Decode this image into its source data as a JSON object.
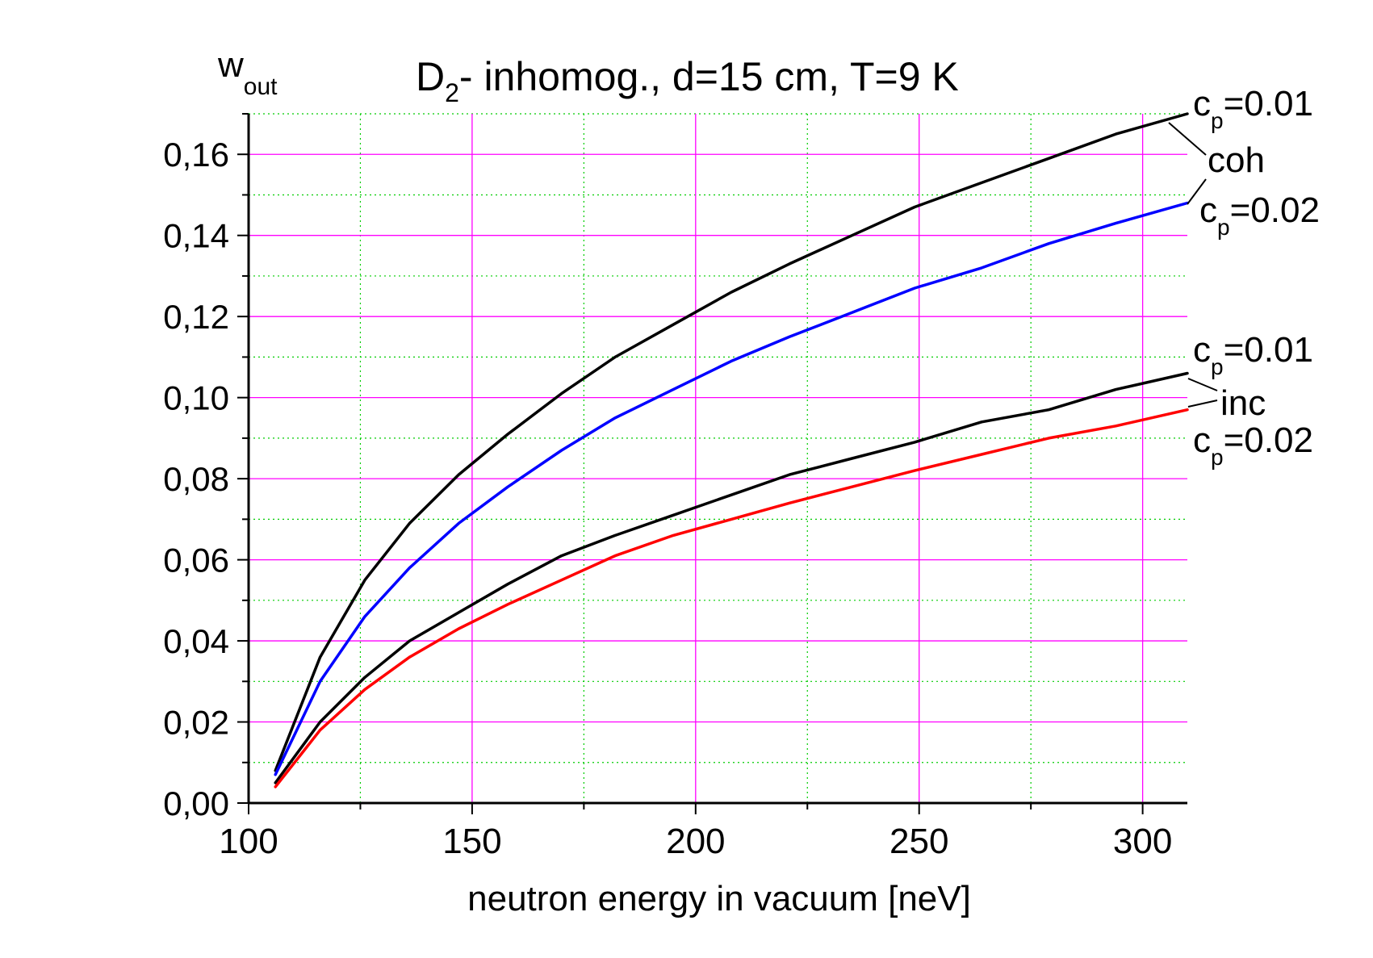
{
  "chart_data": {
    "type": "line",
    "title": {
      "main": "D",
      "sub": "2",
      "rest": "- inhomog., d=15 cm, T=9 K"
    },
    "xlabel": "neutron energy in vacuum [neV]",
    "ylabel": {
      "main": "w",
      "sub": "out"
    },
    "xlim": [
      100,
      310
    ],
    "ylim": [
      0,
      0.17
    ],
    "x_ticks": [
      100,
      150,
      200,
      250,
      300
    ],
    "x_tick_labels": [
      "100",
      "150",
      "200",
      "250",
      "300"
    ],
    "y_ticks": [
      0,
      0.02,
      0.04,
      0.06,
      0.08,
      0.1,
      0.12,
      0.14,
      0.16
    ],
    "y_tick_labels": [
      "0,00",
      "0,02",
      "0,04",
      "0,06",
      "0,08",
      "0,10",
      "0,12",
      "0,14",
      "0,16"
    ],
    "grid": true,
    "x": [
      106,
      116,
      126,
      136,
      147,
      158,
      170,
      182,
      195,
      208,
      221,
      235,
      249,
      264,
      279,
      294,
      310
    ],
    "series": [
      {
        "name": "coh c_p=0.01",
        "color": "#000000",
        "values": [
          0.008,
          0.036,
          0.055,
          0.069,
          0.081,
          0.091,
          0.101,
          0.11,
          0.118,
          0.126,
          0.133,
          0.14,
          0.147,
          0.153,
          0.159,
          0.165,
          0.17
        ]
      },
      {
        "name": "coh c_p=0.02",
        "color": "#0000ff",
        "values": [
          0.007,
          0.03,
          0.046,
          0.058,
          0.069,
          0.078,
          0.087,
          0.095,
          0.102,
          0.109,
          0.115,
          0.121,
          0.127,
          0.132,
          0.138,
          0.143,
          0.148
        ]
      },
      {
        "name": "inc c_p=0.01",
        "color": "#000000",
        "values": [
          0.005,
          0.02,
          0.031,
          0.04,
          0.047,
          0.054,
          0.061,
          0.066,
          0.071,
          0.076,
          0.081,
          0.085,
          0.089,
          0.094,
          0.097,
          0.102,
          0.106
        ]
      },
      {
        "name": "inc c_p=0.02",
        "color": "#ff0000",
        "values": [
          0.004,
          0.018,
          0.028,
          0.036,
          0.043,
          0.049,
          0.055,
          0.061,
          0.066,
          0.07,
          0.074,
          0.078,
          0.082,
          0.086,
          0.09,
          0.093,
          0.097
        ]
      }
    ],
    "annotations": {
      "coh_label": "coh",
      "inc_label": "inc",
      "cp_main": "c",
      "cp_sub": "p",
      "cp001_value": "=0.01",
      "cp002_value": "=0.02"
    },
    "colors": {
      "major_grid": "#ff00ff",
      "minor_grid": "#00cc00",
      "axis": "#000000"
    }
  }
}
